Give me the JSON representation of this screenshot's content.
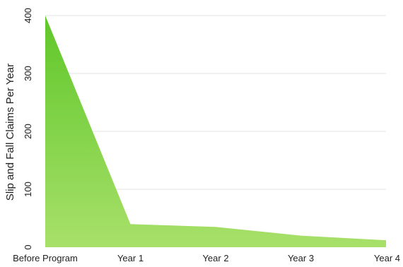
{
  "chart_data": {
    "type": "area",
    "categories": [
      "Before Program",
      "Year 1",
      "Year 2",
      "Year 3",
      "Year 4"
    ],
    "values": [
      400,
      40,
      35,
      20,
      12
    ],
    "title": "",
    "xlabel": "",
    "ylabel": "Slip and Fall Claims Per Year",
    "ylim": [
      0,
      400
    ],
    "yticks": [
      "0",
      "100",
      "200",
      "300",
      "400"
    ],
    "grid": true,
    "colors": {
      "fill_top": "#5fc72a",
      "fill_bottom": "#a8e06a",
      "grid": "#e3e3e3",
      "text": "#222222"
    }
  }
}
